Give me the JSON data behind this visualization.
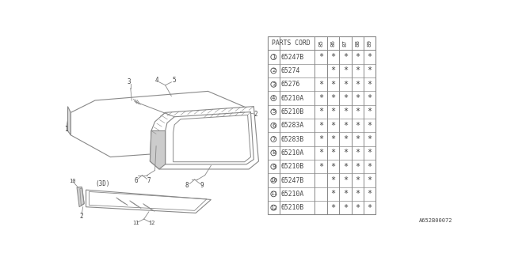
{
  "bg_color": "#ffffff",
  "diagram_code": "A652B00072",
  "line_color": "#888888",
  "text_color": "#444444",
  "font_size": 5.5,
  "table_font_size": 5.8,
  "table": {
    "header_col": "PARTS CORD",
    "year_cols": [
      "85",
      "86",
      "87",
      "88",
      "89"
    ],
    "rows": [
      {
        "num": 1,
        "part": "65247B",
        "years": [
          true,
          true,
          true,
          true,
          true
        ]
      },
      {
        "num": 2,
        "part": "65274",
        "years": [
          false,
          true,
          true,
          true,
          true
        ]
      },
      {
        "num": 3,
        "part": "65276",
        "years": [
          true,
          true,
          true,
          true,
          true
        ]
      },
      {
        "num": 4,
        "part": "65210A",
        "years": [
          true,
          true,
          true,
          true,
          true
        ]
      },
      {
        "num": 5,
        "part": "65210B",
        "years": [
          true,
          true,
          true,
          true,
          true
        ]
      },
      {
        "num": 6,
        "part": "65283A",
        "years": [
          true,
          true,
          true,
          true,
          true
        ]
      },
      {
        "num": 7,
        "part": "65283B",
        "years": [
          true,
          true,
          true,
          true,
          true
        ]
      },
      {
        "num": 8,
        "part": "65210A",
        "years": [
          true,
          true,
          true,
          true,
          true
        ]
      },
      {
        "num": 9,
        "part": "65210B",
        "years": [
          true,
          true,
          true,
          true,
          true
        ]
      },
      {
        "num": 10,
        "part": "65247B",
        "years": [
          false,
          true,
          true,
          true,
          true
        ]
      },
      {
        "num": 11,
        "part": "65210A",
        "years": [
          false,
          true,
          true,
          true,
          true
        ]
      },
      {
        "num": 12,
        "part": "65210B",
        "years": [
          false,
          true,
          true,
          true,
          true
        ]
      }
    ]
  }
}
